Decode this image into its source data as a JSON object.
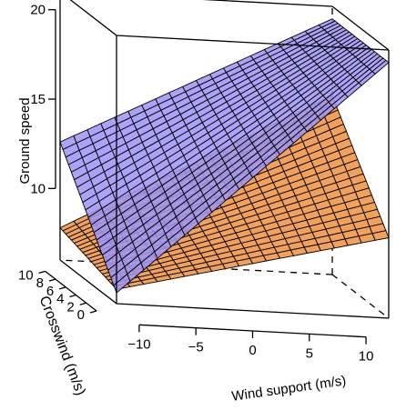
{
  "chart_data": {
    "type": "surface",
    "title": "",
    "xlabel": "Wind support (m/s)",
    "ylabel": "Crosswind (m/s)",
    "zlabel": "Ground speed",
    "xlim": [
      -12,
      12
    ],
    "ylim": [
      0,
      11
    ],
    "zlim": [
      6,
      21
    ],
    "x_ticks": [
      "−10",
      "−5",
      "0",
      "5",
      "10"
    ],
    "y_ticks": [
      "0",
      "2",
      "4",
      "6",
      "8",
      "10"
    ],
    "z_ticks": [
      "10",
      "15",
      "20"
    ],
    "grid": false,
    "series": [
      {
        "surface_color": "#f2a15a",
        "corners": {
          "x_min_y_min": 6.8,
          "x_max_y_min": 10.5,
          "x_min_y_max": 7.8,
          "x_max_y_max": 16.0
        },
        "grid_lines": 20
      },
      {
        "surface_color": "#9f96f6",
        "corners": {
          "x_min_y_min": 6.6,
          "x_max_y_min": 20.3,
          "x_min_y_max": 12.6,
          "x_max_y_max": 20.3
        },
        "grid_lines": 20
      }
    ]
  }
}
